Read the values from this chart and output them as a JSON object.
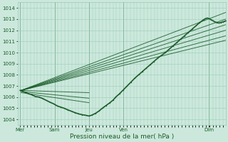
{
  "xlabel": "Pression niveau de la mer( hPa )",
  "bg_color": "#cce8dc",
  "grid_color": "#99ccb8",
  "line_color": "#1a5c2a",
  "ylim": [
    1003.5,
    1014.5
  ],
  "yticks": [
    1004,
    1005,
    1006,
    1007,
    1008,
    1009,
    1010,
    1011,
    1012,
    1013,
    1014
  ],
  "x_day_labels": [
    "Mer",
    "Sam",
    "Jeu",
    "Ven",
    "Dim"
  ],
  "x_day_positions": [
    0.0,
    0.72,
    1.44,
    2.16,
    3.95
  ],
  "xlim": [
    -0.05,
    4.3
  ],
  "forecast_lines": [
    {
      "x0": 0.02,
      "y0": 1006.6,
      "x1": 4.3,
      "y1": 1013.6
    },
    {
      "x0": 0.02,
      "y0": 1006.6,
      "x1": 4.3,
      "y1": 1013.0
    },
    {
      "x0": 0.02,
      "y0": 1006.6,
      "x1": 4.3,
      "y1": 1012.5
    },
    {
      "x0": 0.02,
      "y0": 1006.6,
      "x1": 4.3,
      "y1": 1012.0
    },
    {
      "x0": 0.02,
      "y0": 1006.6,
      "x1": 4.3,
      "y1": 1011.5
    },
    {
      "x0": 0.02,
      "y0": 1006.6,
      "x1": 4.3,
      "y1": 1011.1
    },
    {
      "x0": 0.02,
      "y0": 1006.6,
      "x1": 1.44,
      "y1": 1006.4
    },
    {
      "x0": 0.02,
      "y0": 1006.5,
      "x1": 1.44,
      "y1": 1005.9
    },
    {
      "x0": 0.02,
      "y0": 1006.4,
      "x1": 1.44,
      "y1": 1005.5
    }
  ],
  "actual_line": [
    [
      0.0,
      1006.6
    ],
    [
      0.06,
      1006.5
    ],
    [
      0.12,
      1006.4
    ],
    [
      0.18,
      1006.3
    ],
    [
      0.25,
      1006.2
    ],
    [
      0.32,
      1006.05
    ],
    [
      0.4,
      1006.0
    ],
    [
      0.48,
      1005.85
    ],
    [
      0.55,
      1005.7
    ],
    [
      0.62,
      1005.55
    ],
    [
      0.7,
      1005.4
    ],
    [
      0.72,
      1005.35
    ],
    [
      0.78,
      1005.2
    ],
    [
      0.85,
      1005.1
    ],
    [
      0.92,
      1005.0
    ],
    [
      1.0,
      1004.85
    ],
    [
      1.08,
      1004.72
    ],
    [
      1.15,
      1004.6
    ],
    [
      1.22,
      1004.5
    ],
    [
      1.3,
      1004.42
    ],
    [
      1.38,
      1004.36
    ],
    [
      1.44,
      1004.3
    ],
    [
      1.5,
      1004.38
    ],
    [
      1.58,
      1004.55
    ],
    [
      1.65,
      1004.75
    ],
    [
      1.72,
      1005.0
    ],
    [
      1.8,
      1005.25
    ],
    [
      1.88,
      1005.5
    ],
    [
      1.95,
      1005.75
    ],
    [
      2.0,
      1006.0
    ],
    [
      2.08,
      1006.3
    ],
    [
      2.16,
      1006.65
    ],
    [
      2.24,
      1007.0
    ],
    [
      2.32,
      1007.35
    ],
    [
      2.4,
      1007.7
    ],
    [
      2.48,
      1008.0
    ],
    [
      2.56,
      1008.3
    ],
    [
      2.64,
      1008.6
    ],
    [
      2.72,
      1008.9
    ],
    [
      2.8,
      1009.2
    ],
    [
      2.88,
      1009.5
    ],
    [
      2.96,
      1009.75
    ],
    [
      3.04,
      1010.0
    ],
    [
      3.12,
      1010.3
    ],
    [
      3.2,
      1010.6
    ],
    [
      3.28,
      1010.9
    ],
    [
      3.36,
      1011.2
    ],
    [
      3.44,
      1011.5
    ],
    [
      3.52,
      1011.8
    ],
    [
      3.6,
      1012.1
    ],
    [
      3.68,
      1012.4
    ],
    [
      3.76,
      1012.7
    ],
    [
      3.84,
      1012.95
    ],
    [
      3.88,
      1013.05
    ],
    [
      3.92,
      1013.1
    ],
    [
      3.95,
      1013.05
    ],
    [
      4.0,
      1012.95
    ],
    [
      4.04,
      1012.85
    ],
    [
      4.08,
      1012.75
    ],
    [
      4.12,
      1012.7
    ],
    [
      4.16,
      1012.65
    ],
    [
      4.2,
      1012.7
    ],
    [
      4.24,
      1012.75
    ],
    [
      4.28,
      1012.8
    ],
    [
      4.3,
      1012.85
    ]
  ]
}
